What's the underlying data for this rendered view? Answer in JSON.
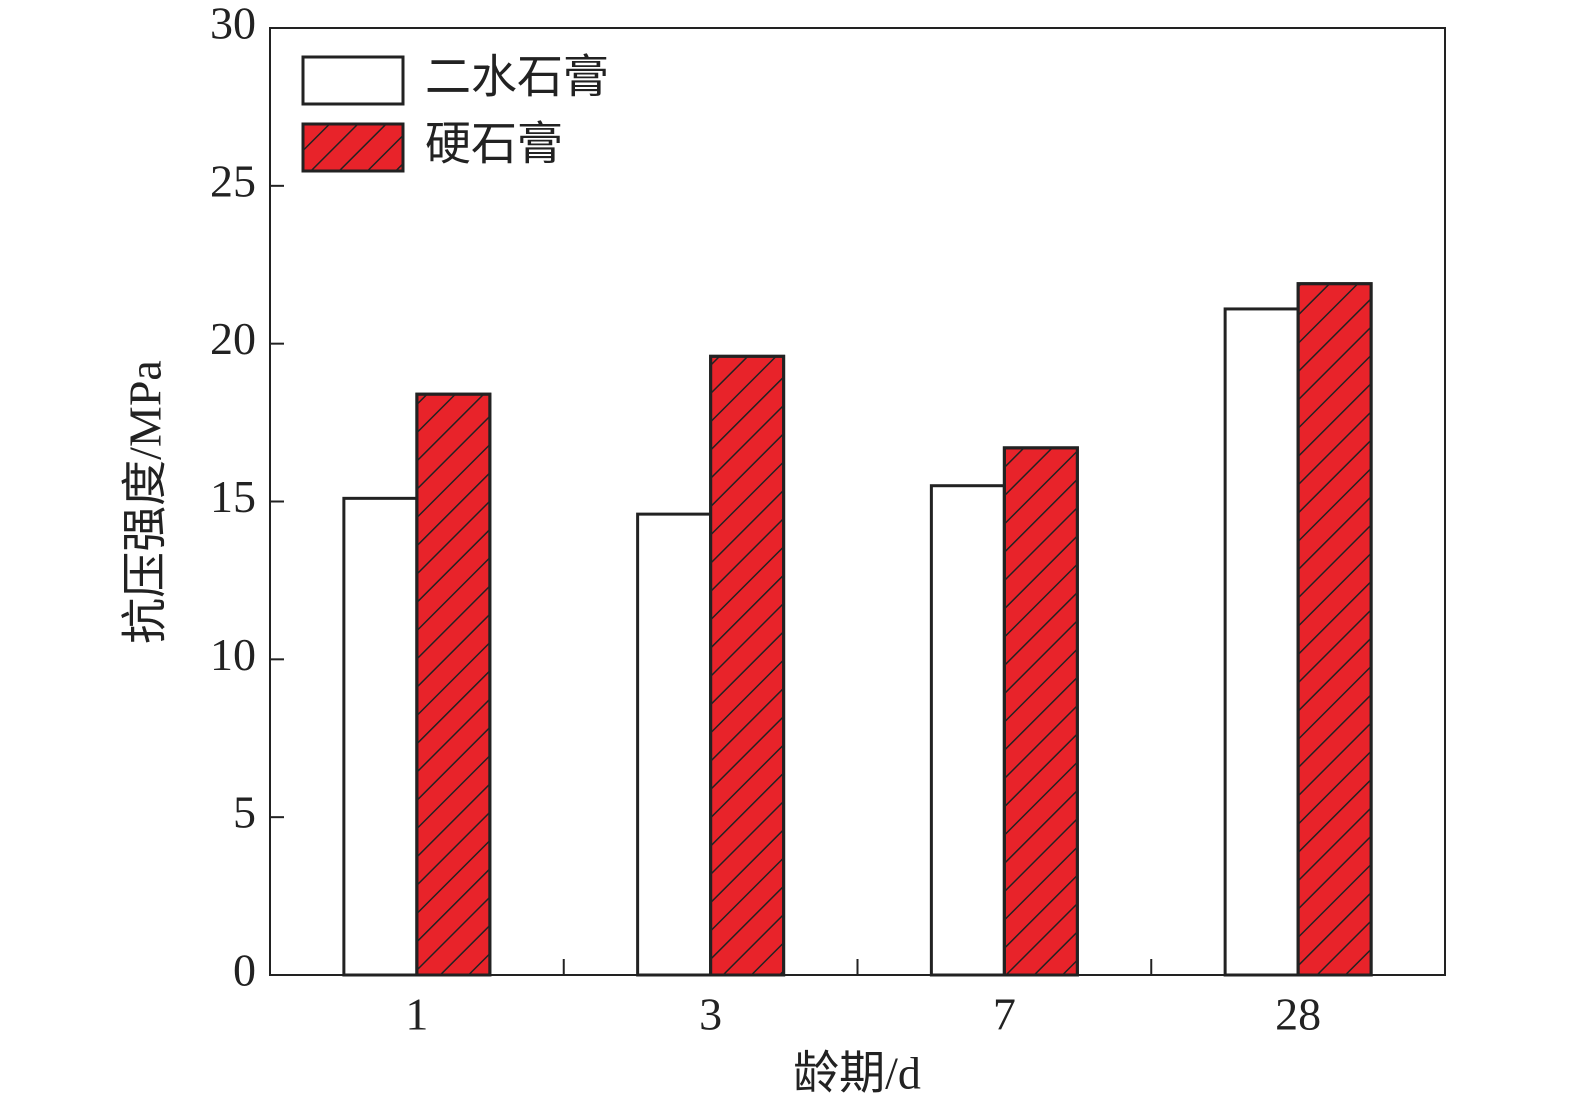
{
  "chart_data": {
    "type": "bar",
    "x_label": "龄期/d",
    "y_label": "抗压强度/MPa",
    "categories": [
      "1",
      "3",
      "7",
      "28"
    ],
    "series": [
      {
        "name": "二水石膏",
        "color": "#ffffff",
        "hatch": false,
        "values": [
          15.1,
          14.6,
          15.5,
          21.1
        ]
      },
      {
        "name": "硬石膏",
        "color": "#e8232a",
        "hatch": true,
        "values": [
          18.4,
          19.6,
          16.7,
          21.9
        ]
      }
    ],
    "ylim": [
      0,
      30
    ],
    "yticks": [
      0,
      5,
      10,
      15,
      20,
      25,
      30
    ],
    "legend": "upper left",
    "grid": false
  }
}
